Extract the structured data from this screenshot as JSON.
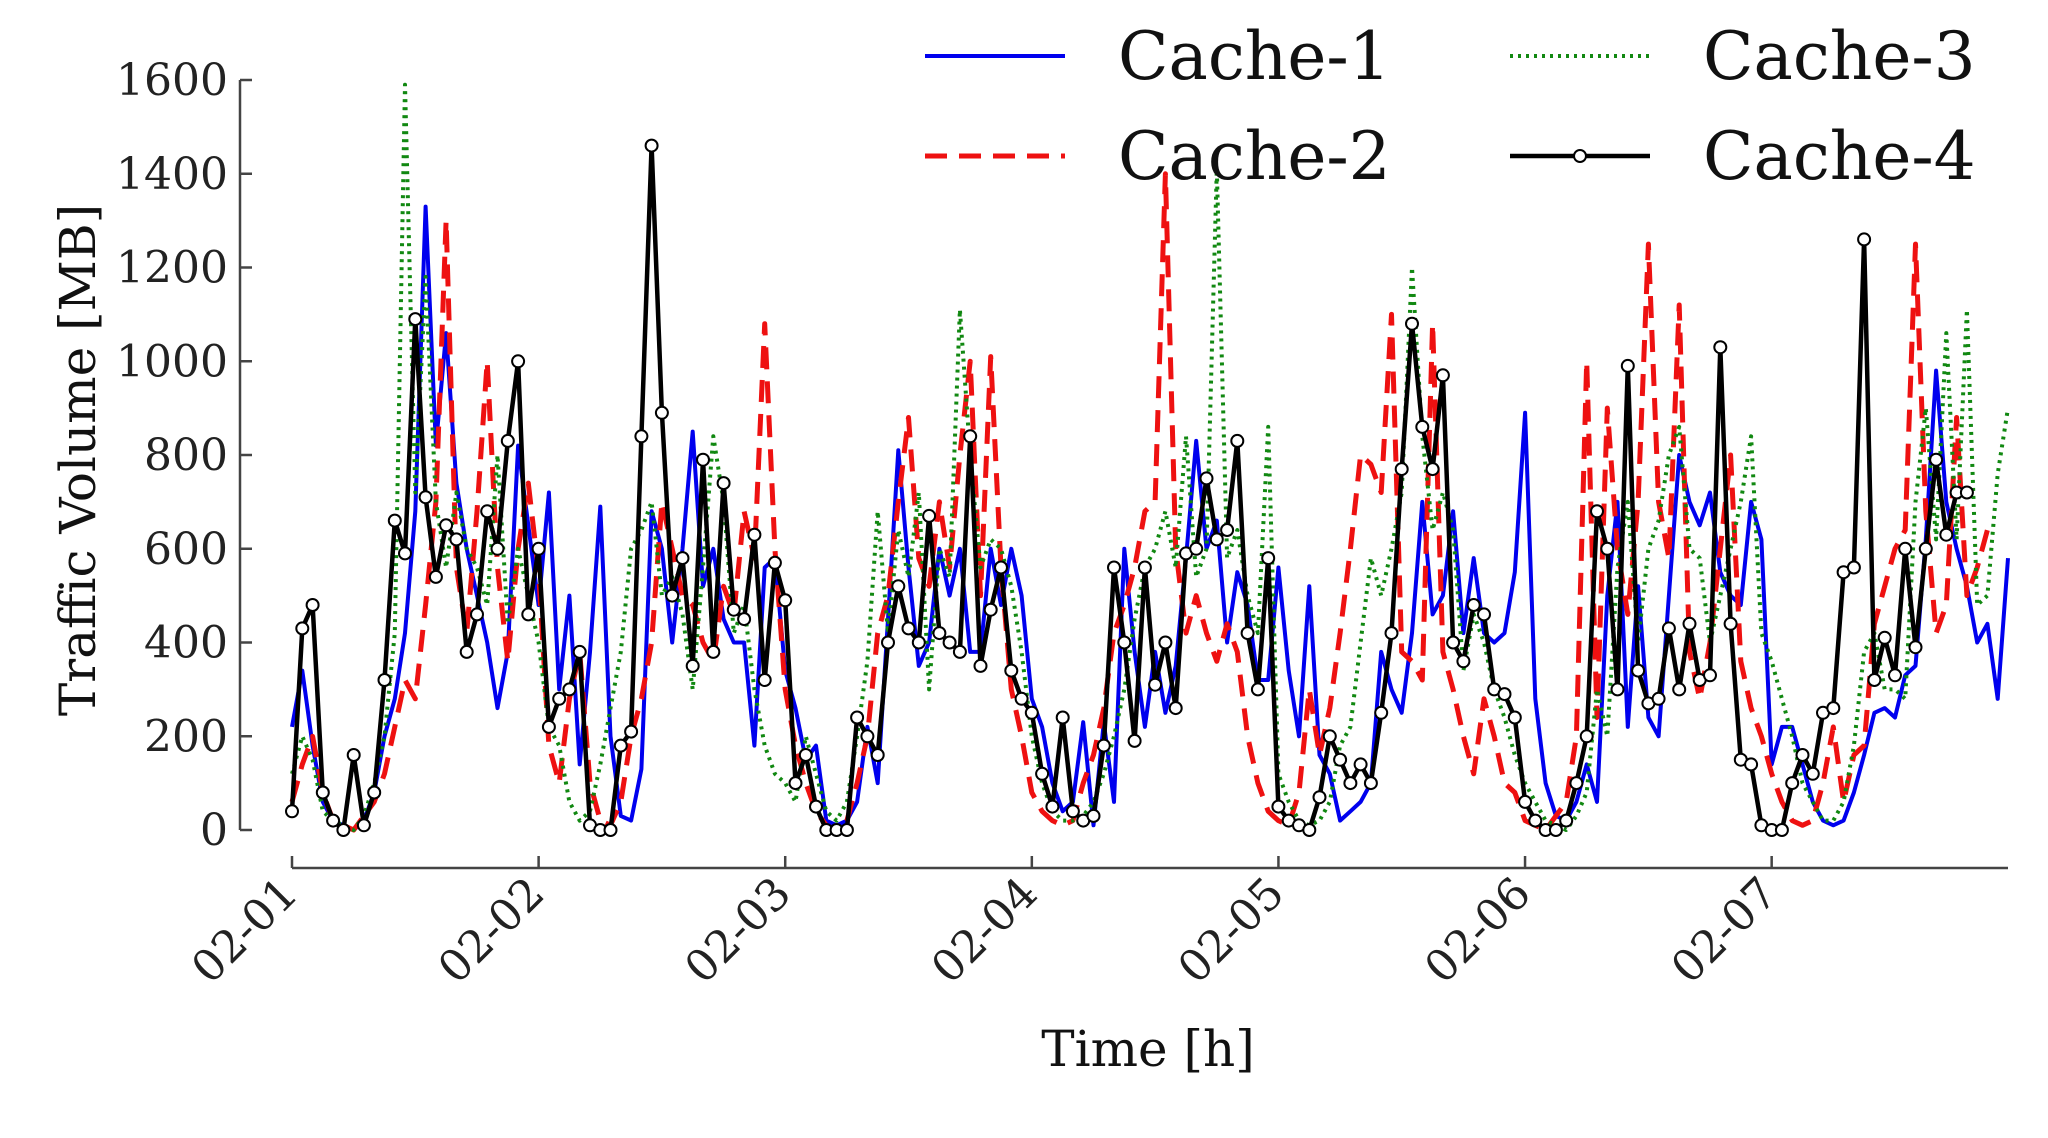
{
  "chart_data": {
    "type": "line",
    "title": "",
    "xlabel": "Time [h]",
    "ylabel": "Traffic Volume [MB]",
    "ylim": [
      0,
      1600
    ],
    "yticks": [
      0,
      200,
      400,
      600,
      800,
      1000,
      1200,
      1400,
      1600
    ],
    "xlim": [
      0,
      167
    ],
    "xtick_hours": [
      0,
      24,
      48,
      72,
      96,
      120,
      144
    ],
    "xtick_labels": [
      "02-01",
      "02-02",
      "02-03",
      "02-04",
      "02-05",
      "02-06",
      "02-07"
    ],
    "grid": false,
    "legend_position": "top-right",
    "colors": {
      "Cache-1": "#0000ee",
      "Cache-2": "#ee1111",
      "Cache-3": "#118811",
      "Cache-4": "#000000"
    },
    "series": [
      {
        "name": "Cache-1",
        "style": "solid",
        "values": [
          220,
          340,
          180,
          60,
          20,
          10,
          0,
          20,
          80,
          200,
          280,
          420,
          680,
          1330,
          820,
          1060,
          740,
          600,
          500,
          400,
          260,
          380,
          820,
          650,
          480,
          720,
          300,
          500,
          140,
          380,
          690,
          200,
          30,
          20,
          130,
          680,
          600,
          400,
          600,
          850,
          520,
          600,
          450,
          400,
          400,
          180,
          560,
          580,
          340,
          260,
          150,
          180,
          20,
          10,
          20,
          60,
          220,
          100,
          450,
          810,
          560,
          350,
          400,
          600,
          500,
          600,
          380,
          380,
          600,
          480,
          600,
          500,
          280,
          220,
          100,
          40,
          60,
          230,
          10,
          230,
          60,
          600,
          380,
          220,
          380,
          250,
          350,
          580,
          830,
          600,
          660,
          400,
          550,
          480,
          320,
          320,
          560,
          340,
          200,
          520,
          160,
          120,
          20,
          40,
          60,
          100,
          380,
          300,
          250,
          420,
          700,
          460,
          500,
          680,
          420,
          580,
          420,
          400,
          420,
          550,
          890,
          280,
          100,
          30,
          20,
          60,
          140,
          60,
          500,
          700,
          220,
          520,
          240,
          200,
          500,
          800,
          700,
          650,
          720,
          550,
          500,
          480,
          700,
          620,
          140,
          220,
          220,
          140,
          60,
          20,
          10,
          20,
          80,
          160,
          250,
          260,
          240,
          330,
          350,
          620,
          980,
          700,
          600,
          520,
          400,
          440,
          280,
          580
        ]
      },
      {
        "name": "Cache-2",
        "style": "dashed",
        "values": [
          60,
          140,
          200,
          80,
          20,
          10,
          0,
          30,
          60,
          120,
          220,
          320,
          280,
          480,
          700,
          1300,
          560,
          420,
          680,
          1000,
          560,
          360,
          600,
          740,
          550,
          180,
          100,
          280,
          380,
          100,
          20,
          10,
          60,
          200,
          280,
          400,
          700,
          600,
          500,
          480,
          400,
          360,
          520,
          460,
          680,
          580,
          1080,
          600,
          300,
          180,
          100,
          40,
          10,
          0,
          20,
          100,
          200,
          420,
          500,
          700,
          880,
          580,
          520,
          700,
          560,
          800,
          1000,
          500,
          1010,
          560,
          300,
          200,
          80,
          40,
          20,
          10,
          20,
          100,
          160,
          260,
          420,
          480,
          560,
          680,
          700,
          1400,
          600,
          420,
          500,
          420,
          360,
          440,
          380,
          200,
          100,
          40,
          20,
          10,
          80,
          300,
          160,
          260,
          420,
          600,
          800,
          780,
          720,
          1100,
          380,
          360,
          320,
          1080,
          380,
          300,
          200,
          120,
          280,
          200,
          100,
          80,
          20,
          10,
          0,
          30,
          60,
          200,
          1000,
          240,
          900,
          600,
          460,
          700,
          1250,
          700,
          580,
          1120,
          380,
          280,
          400,
          600,
          800,
          360,
          260,
          200,
          120,
          60,
          20,
          10,
          20,
          100,
          220,
          60,
          160,
          180,
          440,
          520,
          600,
          640,
          1250,
          680,
          420,
          480,
          880,
          500,
          560,
          640
        ]
      },
      {
        "name": "Cache-3",
        "style": "dotted",
        "values": [
          120,
          200,
          150,
          40,
          20,
          10,
          0,
          30,
          100,
          200,
          420,
          1590,
          720,
          1180,
          700,
          560,
          720,
          600,
          560,
          480,
          800,
          440,
          600,
          500,
          400,
          220,
          180,
          60,
          20,
          40,
          140,
          260,
          380,
          600,
          640,
          700,
          500,
          540,
          460,
          300,
          560,
          840,
          700,
          420,
          480,
          300,
          180,
          120,
          100,
          60,
          200,
          120,
          40,
          20,
          60,
          200,
          360,
          680,
          420,
          640,
          540,
          720,
          300,
          600,
          540,
          1110,
          800,
          560,
          620,
          600,
          520,
          380,
          200,
          100,
          40,
          20,
          20,
          30,
          60,
          120,
          200,
          300,
          450,
          560,
          600,
          680,
          560,
          840,
          540,
          600,
          1410,
          580,
          640,
          500,
          420,
          860,
          120,
          60,
          20,
          10,
          20,
          60,
          180,
          220,
          400,
          580,
          500,
          600,
          720,
          1200,
          840,
          640,
          720,
          640,
          340,
          460,
          400,
          300,
          240,
          160,
          100,
          60,
          20,
          10,
          0,
          30,
          80,
          300,
          200,
          560,
          700,
          400,
          600,
          660,
          800,
          860,
          600,
          580,
          400,
          500,
          600,
          700,
          840,
          420,
          360,
          280,
          200,
          100,
          60,
          20,
          20,
          60,
          180,
          380,
          420,
          300,
          300,
          280,
          700,
          900,
          620,
          1060,
          620,
          1110,
          480,
          500,
          760,
          900
        ]
      },
      {
        "name": "Cache-4",
        "style": "solid-markers",
        "values": [
          40,
          430,
          480,
          80,
          20,
          0,
          160,
          10,
          80,
          320,
          660,
          590,
          1090,
          710,
          540,
          650,
          620,
          380,
          460,
          680,
          600,
          830,
          1000,
          460,
          600,
          220,
          280,
          300,
          380,
          10,
          0,
          0,
          180,
          210,
          840,
          1460,
          890,
          500,
          580,
          350,
          790,
          380,
          740,
          470,
          450,
          630,
          320,
          570,
          490,
          100,
          160,
          50,
          0,
          0,
          0,
          240,
          200,
          160,
          400,
          520,
          430,
          400,
          670,
          420,
          400,
          380,
          840,
          350,
          470,
          560,
          340,
          280,
          250,
          120,
          50,
          240,
          40,
          20,
          30,
          180,
          560,
          400,
          190,
          560,
          310,
          400,
          260,
          590,
          600,
          750,
          620,
          640,
          830,
          420,
          300,
          580,
          50,
          20,
          10,
          0,
          70,
          200,
          150,
          100,
          140,
          100,
          250,
          420,
          770,
          1080,
          860,
          770,
          970,
          400,
          360,
          480,
          460,
          300,
          290,
          240,
          60,
          20,
          0,
          0,
          20,
          100,
          200,
          680,
          600,
          300,
          990,
          340,
          270,
          280,
          430,
          300,
          440,
          320,
          330,
          1030,
          440,
          150,
          140,
          10,
          0,
          0,
          100,
          160,
          120,
          250,
          260,
          550,
          560,
          1260,
          320,
          410,
          330,
          600,
          390,
          600,
          790,
          630,
          720,
          720
        ]
      }
    ]
  }
}
